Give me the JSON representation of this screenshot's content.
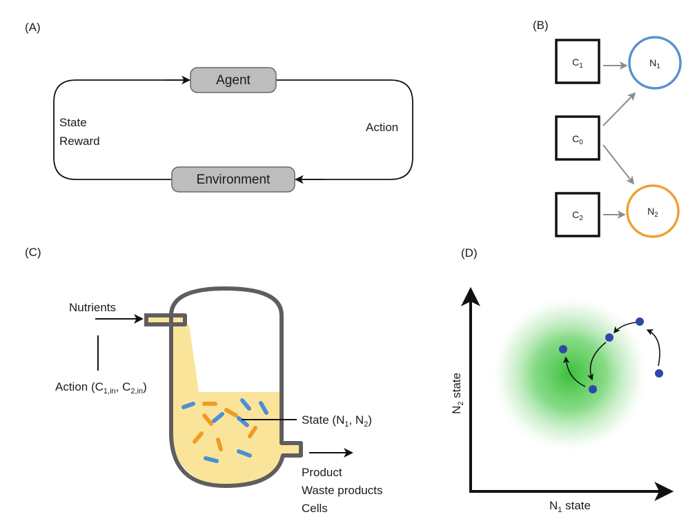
{
  "panels": {
    "a": {
      "label": "(A)",
      "agent": "Agent",
      "environment": "Environment",
      "state": "State",
      "reward": "Reward",
      "action": "Action"
    },
    "b": {
      "label": "(B)",
      "c1_main": "C",
      "c1_sub": "1",
      "c0_main": "C",
      "c0_sub": "0",
      "c2_main": "C",
      "c2_sub": "2",
      "n1_main": "N",
      "n1_sub": "1",
      "n2_main": "N",
      "n2_sub": "2"
    },
    "c": {
      "label": "(C)",
      "nutrients": "Nutrients",
      "action_prefix": "Action (C",
      "action_sub1": "1,in",
      "action_mid": ", C",
      "action_sub2": "2,in",
      "action_suffix": ")",
      "state_prefix": "State (N",
      "state_sub1": "1",
      "state_mid": ", N",
      "state_sub2": "2",
      "state_suffix": ")",
      "product": "Product",
      "waste": "Waste products",
      "cells": "Cells"
    },
    "d": {
      "label": "(D)",
      "x_main": "N",
      "x_sub": "1",
      "x_rest": " state",
      "y_main": "N",
      "y_sub": "2",
      "y_rest": " state"
    }
  },
  "colors": {
    "n1_ring": "#5b8fd1",
    "n2_ring": "#f0a030",
    "medium": "#fae49a",
    "vessel": "#5e5e5e",
    "cell_blue": "#4a8fd8",
    "cell_orange": "#f09a28",
    "target_green": "#3bbf3b",
    "trajectory_point": "#2f48a8",
    "node_fill": "#bdbdbd",
    "grey_arrow": "#8c8c8c"
  }
}
